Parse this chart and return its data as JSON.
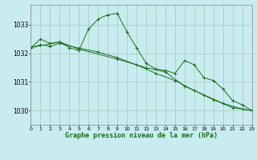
{
  "xlabel": "Graphe pression niveau de la mer (hPa)",
  "xlim": [
    0,
    23
  ],
  "ylim": [
    1029.5,
    1033.7
  ],
  "yticks": [
    1030,
    1031,
    1032,
    1033
  ],
  "xticks": [
    0,
    1,
    2,
    3,
    4,
    5,
    6,
    7,
    8,
    9,
    10,
    11,
    12,
    13,
    14,
    15,
    16,
    17,
    18,
    19,
    20,
    21,
    22,
    23
  ],
  "background_color": "#c8ecf0",
  "grid_color": "#a8c8b8",
  "line_color": "#1a6e1a",
  "series1": [
    [
      0,
      1032.2
    ],
    [
      1,
      1032.5
    ],
    [
      2,
      1032.35
    ],
    [
      3,
      1032.4
    ],
    [
      4,
      1032.2
    ],
    [
      5,
      1032.1
    ],
    [
      6,
      1032.85
    ],
    [
      7,
      1033.2
    ],
    [
      8,
      1033.35
    ],
    [
      9,
      1033.4
    ],
    [
      10,
      1032.75
    ],
    [
      11,
      1032.2
    ],
    [
      12,
      1031.65
    ],
    [
      13,
      1031.45
    ],
    [
      14,
      1031.4
    ],
    [
      15,
      1031.3
    ],
    [
      16,
      1031.75
    ],
    [
      17,
      1031.6
    ],
    [
      18,
      1031.15
    ],
    [
      19,
      1031.05
    ],
    [
      20,
      1030.75
    ],
    [
      21,
      1030.35
    ],
    [
      22,
      1030.2
    ],
    [
      23,
      1030.0
    ]
  ],
  "series2": [
    [
      0,
      1032.2
    ],
    [
      3,
      1032.4
    ],
    [
      5,
      1032.15
    ],
    [
      9,
      1031.8
    ],
    [
      12,
      1031.5
    ],
    [
      14,
      1031.35
    ],
    [
      16,
      1030.85
    ],
    [
      18,
      1030.55
    ],
    [
      20,
      1030.25
    ],
    [
      22,
      1030.05
    ],
    [
      23,
      1030.0
    ]
  ],
  "series3": [
    [
      0,
      1032.2
    ],
    [
      1,
      1032.3
    ],
    [
      2,
      1032.25
    ],
    [
      3,
      1032.35
    ],
    [
      5,
      1032.18
    ],
    [
      7,
      1032.05
    ],
    [
      9,
      1031.85
    ],
    [
      11,
      1031.6
    ],
    [
      13,
      1031.3
    ],
    [
      15,
      1031.05
    ],
    [
      17,
      1030.7
    ],
    [
      19,
      1030.38
    ],
    [
      21,
      1030.1
    ],
    [
      23,
      1030.0
    ]
  ]
}
